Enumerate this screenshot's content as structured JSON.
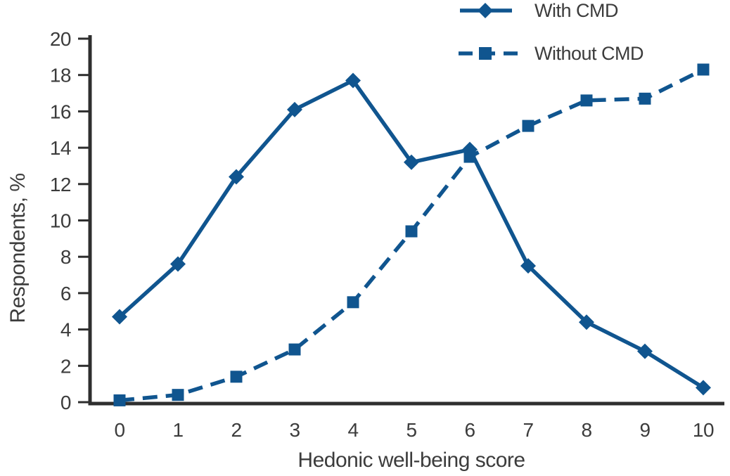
{
  "legend": {
    "items": [
      {
        "label": "With CMD",
        "marker": "diamond",
        "line_style": "solid"
      },
      {
        "label": "Without CMD",
        "marker": "square",
        "line_style": "dashed"
      }
    ]
  },
  "chart_data": {
    "type": "line",
    "x": [
      0,
      1,
      2,
      3,
      4,
      5,
      6,
      7,
      8,
      9,
      10
    ],
    "series": [
      {
        "name": "With CMD",
        "marker": "diamond",
        "line_style": "solid",
        "values": [
          4.7,
          7.6,
          12.4,
          16.1,
          17.7,
          13.2,
          13.9,
          7.5,
          4.4,
          2.8,
          0.8
        ]
      },
      {
        "name": "Without CMD",
        "marker": "square",
        "line_style": "dashed",
        "values": [
          0.1,
          0.4,
          1.4,
          2.9,
          5.5,
          9.4,
          13.5,
          15.2,
          16.6,
          16.7,
          18.3
        ]
      }
    ],
    "xlabel": "Hedonic well-being score",
    "ylabel": "Respondents, %",
    "xlim": [
      0,
      10
    ],
    "ylim": [
      0,
      20
    ],
    "xticks": [
      0,
      1,
      2,
      3,
      4,
      5,
      6,
      7,
      8,
      9,
      10
    ],
    "yticks": [
      0,
      2,
      4,
      6,
      8,
      10,
      12,
      14,
      16,
      18,
      20
    ],
    "grid": false,
    "legend_position": "top-right",
    "colors": {
      "series": "#10558F",
      "axis": "#2E2E2E",
      "text": "#3C3C3C"
    }
  }
}
